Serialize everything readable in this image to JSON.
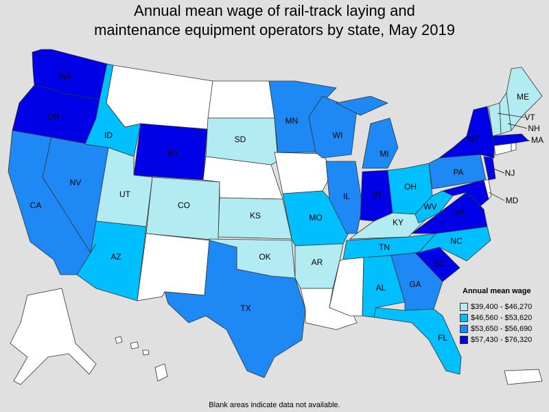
{
  "title_line1": "Annual mean wage of rail-track laying and",
  "title_line2": "maintenance equipment operators by state, May 2019",
  "footnote": "Blank areas indicate data not available.",
  "colors": {
    "blank": "#ffffff",
    "c1": "#b2ebf2",
    "c2": "#00bfff",
    "c3": "#1e88f5",
    "c4": "#0000e6"
  },
  "legend": {
    "title": "Annual mean wage",
    "items": [
      {
        "label": "$39,400 - $46,270",
        "cls": "c1"
      },
      {
        "label": "$46,560 - $53,620",
        "cls": "c2"
      },
      {
        "label": "$53,650 - $56,690",
        "cls": "c3"
      },
      {
        "label": "$57,430 - $76,320",
        "cls": "c4"
      }
    ]
  },
  "states": {
    "WA": {
      "label": "WA",
      "cls": "c4"
    },
    "OR": {
      "label": "OR",
      "cls": "c4"
    },
    "CA": {
      "label": "CA",
      "cls": "c3"
    },
    "NV": {
      "label": "NV",
      "cls": "c3"
    },
    "ID": {
      "label": "ID",
      "cls": "c2"
    },
    "MT": {
      "label": "",
      "cls": "blank"
    },
    "WY": {
      "label": "WY",
      "cls": "c4"
    },
    "UT": {
      "label": "UT",
      "cls": "c1"
    },
    "AZ": {
      "label": "AZ",
      "cls": "c2"
    },
    "CO": {
      "label": "CO",
      "cls": "c1"
    },
    "NM": {
      "label": "",
      "cls": "blank"
    },
    "ND": {
      "label": "",
      "cls": "blank"
    },
    "SD": {
      "label": "SD",
      "cls": "c1"
    },
    "NE": {
      "label": "",
      "cls": "blank"
    },
    "KS": {
      "label": "KS",
      "cls": "c1"
    },
    "OK": {
      "label": "OK",
      "cls": "c1"
    },
    "TX": {
      "label": "TX",
      "cls": "c3"
    },
    "MN": {
      "label": "MN",
      "cls": "c3"
    },
    "IA": {
      "label": "",
      "cls": "blank"
    },
    "MO": {
      "label": "MO",
      "cls": "c2"
    },
    "AR": {
      "label": "AR",
      "cls": "c1"
    },
    "LA": {
      "label": "",
      "cls": "blank"
    },
    "WI": {
      "label": "WI",
      "cls": "c3"
    },
    "IL": {
      "label": "IL",
      "cls": "c3"
    },
    "MI": {
      "label": "MI",
      "cls": "c3"
    },
    "IN": {
      "label": "IN",
      "cls": "c4"
    },
    "OH": {
      "label": "OH",
      "cls": "c2"
    },
    "KY": {
      "label": "KY",
      "cls": "c1"
    },
    "TN": {
      "label": "TN",
      "cls": "c2"
    },
    "MS": {
      "label": "",
      "cls": "blank"
    },
    "AL": {
      "label": "AL",
      "cls": "c2"
    },
    "GA": {
      "label": "GA",
      "cls": "c3"
    },
    "FL": {
      "label": "FL",
      "cls": "c2"
    },
    "SC": {
      "label": "SC",
      "cls": "c4"
    },
    "NC": {
      "label": "NC",
      "cls": "c2"
    },
    "VA": {
      "label": "VA",
      "cls": "c4"
    },
    "WV": {
      "label": "WV",
      "cls": "c2"
    },
    "PA": {
      "label": "PA",
      "cls": "c3"
    },
    "NY": {
      "label": "NY",
      "cls": "c4"
    },
    "NJ": {
      "label": "NJ",
      "cls": "c4"
    },
    "MD": {
      "label": "MD",
      "cls": "c4"
    },
    "DE": {
      "label": "",
      "cls": "blank"
    },
    "CT": {
      "label": "",
      "cls": "blank"
    },
    "RI": {
      "label": "",
      "cls": "blank"
    },
    "MA": {
      "label": "MA",
      "cls": "c4"
    },
    "VT": {
      "label": "VT",
      "cls": "c1"
    },
    "NH": {
      "label": "NH",
      "cls": "c1"
    },
    "ME": {
      "label": "ME",
      "cls": "c1"
    },
    "AK": {
      "label": "",
      "cls": "blank"
    },
    "HI": {
      "label": "",
      "cls": "blank"
    },
    "PR": {
      "label": "",
      "cls": "blank"
    }
  }
}
